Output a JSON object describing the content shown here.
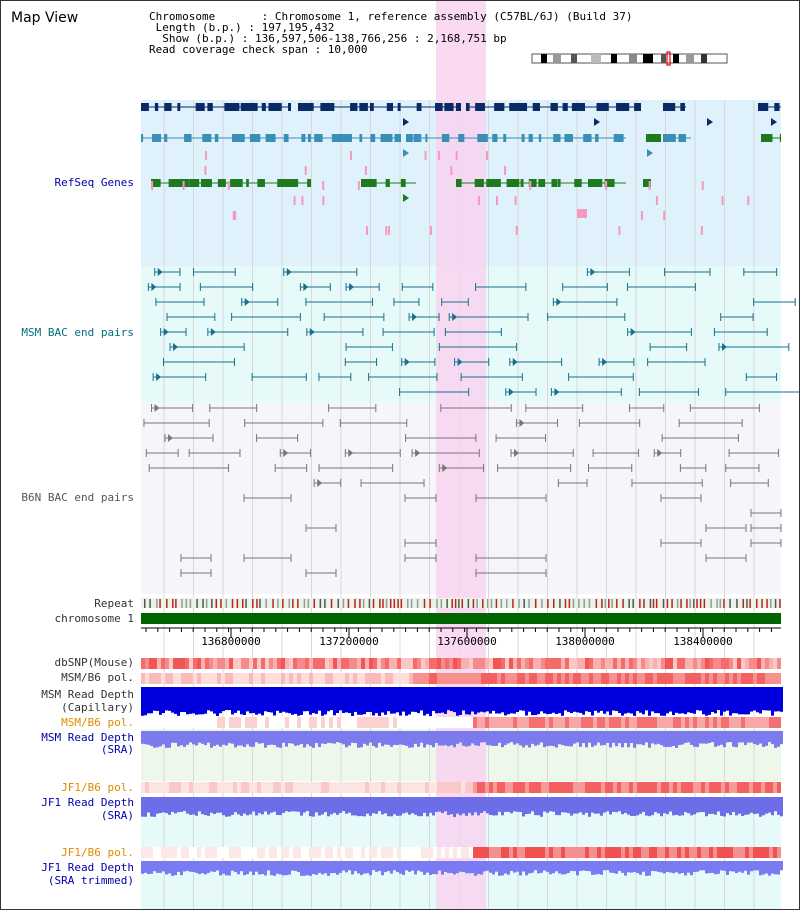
{
  "view": {
    "title": "Map View"
  },
  "info": {
    "chromosome": "Chromosome       : Chromosome 1, reference assembly (C57BL/6J) (Build 37)",
    "length": " Length (b.p.) : 197,195,432",
    "show": "  Show (b.p.) : 136,597,506-138,766,256 : 2,168,751 bp",
    "span": "Read coverage check span : 10,000"
  },
  "tracks": {
    "refseq": "RefSeq Genes",
    "msm_bac": "MSM BAC end pairs",
    "b6n_bac": "B6N BAC end pairs",
    "repeat": "Repeat",
    "chromosome": "chromosome 1",
    "dbsnp": "dbSNP(Mouse)",
    "msm_pol_1": "MSM/B6 pol.",
    "msm_depth_cap_1": "MSM Read Depth",
    "msm_depth_cap_2": "(Capillary)",
    "msm_pol_2": "MSM/B6 pol.",
    "msm_depth_sra_1": "MSM Read Depth",
    "msm_depth_sra_2": "(SRA)",
    "jf1_pol_1": "JF1/B6 pol.",
    "jf1_depth_1": "JF1 Read Depth",
    "jf1_depth_2": "(SRA)",
    "jf1_pol_2": "JF1/B6 pol.",
    "jf1_trim_1": "JF1 Read Depth",
    "jf1_trim_2": "(SRA trimmed)"
  },
  "axis": {
    "ticks": [
      "136800000",
      "137200000",
      "137600000",
      "138000000",
      "138400000"
    ]
  },
  "colors": {
    "refseq_bg": "#dff1fb",
    "msm_bg": "#e6fafa",
    "b6n_bg": "#f6f6fa",
    "highlight": "#f8d3f0",
    "gene_dark": "#0a2a66",
    "gene_mid": "#3a8fb5",
    "gene_green": "#1f7a1f",
    "gene_pink": "#f49ac0",
    "bac_teal": "#1a6f8a",
    "bac_gray": "#777777",
    "chrom_green": "#006400",
    "depth_blue": "#0000dd",
    "depth_light": "#7070f0",
    "pol_red": "#f04040"
  }
}
